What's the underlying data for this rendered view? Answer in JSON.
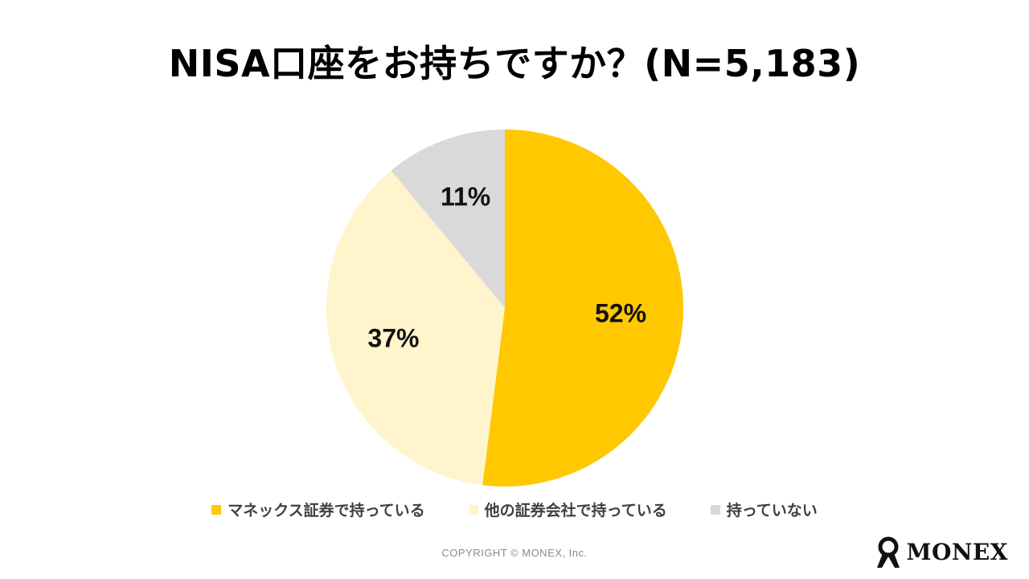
{
  "title": "NISA口座をお持ちですか？(N=5,183)",
  "chart_data": {
    "type": "pie",
    "title": "NISA口座をお持ちですか？(N=5,183)",
    "slices": [
      {
        "label": "マネックス証券で持っている",
        "value": 52,
        "display": "52%",
        "color": "#FFC800"
      },
      {
        "label": "他の証券会社で持っている",
        "value": 37,
        "display": "37%",
        "color": "#FFF4CC"
      },
      {
        "label": "持っていない",
        "value": 11,
        "display": "11%",
        "color": "#D9D9D9"
      }
    ],
    "start_angle": "12 o'clock",
    "direction": "clockwise",
    "legend_position": "bottom"
  },
  "legend": [
    {
      "label": "マネックス証券で持っている",
      "color": "#FFC800"
    },
    {
      "label": "他の証券会社で持っている",
      "color": "#FFF4CC"
    },
    {
      "label": "持っていない",
      "color": "#D9D9D9"
    }
  ],
  "footer": {
    "copyright": "COPYRIGHT © MONEX, Inc.",
    "brand": "MONEX"
  }
}
